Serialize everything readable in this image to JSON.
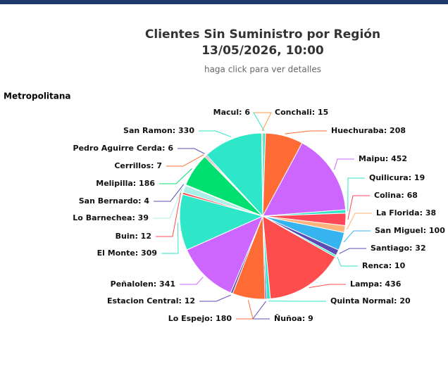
{
  "page": {
    "panel_title": "Metropolitana"
  },
  "chart_data": {
    "type": "pie",
    "title": "Clientes Sin Suministro por Región",
    "date": "13/05/2026, 10:00",
    "subtitle": "haga click para ver detalles",
    "values": [
      15,
      208,
      452,
      19,
      68,
      38,
      100,
      32,
      10,
      436,
      20,
      9,
      180,
      12,
      341,
      309,
      12,
      39,
      4,
      186,
      7,
      6,
      330,
      6
    ],
    "value_labels": [
      "Conchali: 15",
      "Huechuraba: 208",
      "Maipu: 452",
      "Quilicura: 19",
      "Colina: 68",
      "La Florida: 38",
      "San Miguel: 100",
      "Santiago: 32",
      "Renca: 10",
      "Lampa: 436",
      "Quinta Normal: 20",
      "Ñuñoa: 9",
      "Lo Espejo: 180",
      "Estacion Central: 12",
      "Peñalolen: 341",
      "El Monte: 309",
      "Buin: 12",
      "Lo Barnechea: 39",
      "San Bernardo: 4",
      "Melipilla: 186",
      "Cerrillos: 7",
      "Pedro Aguirre Cerda: 6",
      "San Ramon: 330",
      "Macul: 6"
    ],
    "colors": [
      "#2ee6c8",
      "#ff6b35",
      "#cc66ff",
      "#2ee6c8",
      "#ff4757",
      "#ffb37a",
      "#35b4f0",
      "#5b4bb7",
      "#2ee6c8",
      "#ff4d4d",
      "#2ee6c8",
      "#5b4bb7",
      "#ff6b35",
      "#5b4bb7",
      "#cc66ff",
      "#2ee6c8",
      "#ff4d4d",
      "#aaf0e6",
      "#5b4bb7",
      "#00e070",
      "#ff6b35",
      "#5b4bb7",
      "#2ee6c8",
      "#ff9a4a"
    ]
  }
}
